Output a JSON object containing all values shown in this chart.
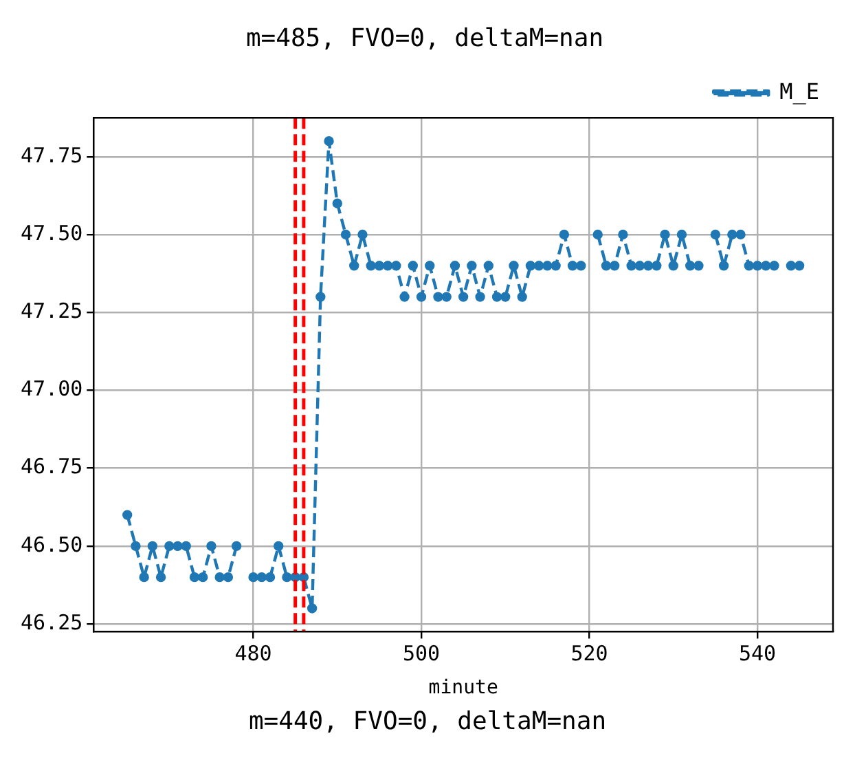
{
  "chart_data": {
    "type": "line",
    "title": "m=485, FVO=0, deltaM=nan",
    "xlabel": "minute",
    "annotations": [
      "m=440, FVO=0, deltaM=nan"
    ],
    "x": [
      465,
      466,
      467,
      468,
      469,
      470,
      471,
      472,
      473,
      474,
      475,
      476,
      477,
      478,
      479,
      480,
      481,
      482,
      483,
      484,
      485,
      486,
      487,
      488,
      489,
      490,
      491,
      492,
      493,
      494,
      495,
      496,
      497,
      498,
      499,
      500,
      501,
      502,
      503,
      504,
      505,
      506,
      507,
      508,
      509,
      510,
      511,
      512,
      513,
      514,
      515,
      516,
      517,
      518,
      519,
      520,
      521,
      522,
      523,
      524,
      525,
      526,
      527,
      528,
      529,
      530,
      531,
      532,
      533,
      534,
      535,
      536,
      537,
      538,
      539,
      540,
      541,
      542,
      543,
      544,
      545
    ],
    "series": [
      {
        "name": "M_E",
        "color": "#1f77b4",
        "values": [
          46.6,
          46.5,
          46.4,
          46.5,
          46.4,
          46.5,
          46.5,
          46.5,
          46.4,
          46.4,
          46.5,
          46.4,
          46.4,
          46.5,
          null,
          46.4,
          46.4,
          46.4,
          46.5,
          46.4,
          46.4,
          46.4,
          46.3,
          47.3,
          47.8,
          47.6,
          47.5,
          47.4,
          47.5,
          47.4,
          47.4,
          47.4,
          47.4,
          47.3,
          47.4,
          47.3,
          47.4,
          47.3,
          47.3,
          47.4,
          47.3,
          47.4,
          47.3,
          47.4,
          47.3,
          47.3,
          47.4,
          47.3,
          47.4,
          47.4,
          47.4,
          47.4,
          47.5,
          47.4,
          47.4,
          null,
          47.5,
          47.4,
          47.4,
          47.5,
          47.4,
          47.4,
          47.4,
          47.4,
          47.5,
          47.4,
          47.5,
          47.4,
          47.4,
          null,
          47.5,
          47.4,
          47.5,
          47.5,
          47.4,
          47.4,
          47.4,
          47.4,
          null,
          47.4,
          47.4
        ]
      }
    ],
    "xlim": [
      461,
      549
    ],
    "xticks": [
      480,
      500,
      520,
      540
    ],
    "ylim": [
      46.225,
      47.875
    ],
    "yticks": [
      {
        "value": 46.25,
        "label": "46.25"
      },
      {
        "value": 46.5,
        "label": "46.50"
      },
      {
        "value": 46.75,
        "label": "46.75"
      },
      {
        "value": 47.0,
        "label": "47.00"
      },
      {
        "value": 47.25,
        "label": "47.25"
      },
      {
        "value": 47.5,
        "label": "47.50"
      },
      {
        "value": 47.75,
        "label": "47.75"
      }
    ],
    "ref_lines": [
      {
        "axis": "x",
        "value": 485,
        "color": "#ff0000",
        "line_style": "dashed"
      },
      {
        "axis": "x",
        "value": 486,
        "color": "#ff0000",
        "line_style": "dashed"
      }
    ],
    "grid": true,
    "legend": "top right",
    "marker": "circle",
    "line_style": "dashed"
  }
}
